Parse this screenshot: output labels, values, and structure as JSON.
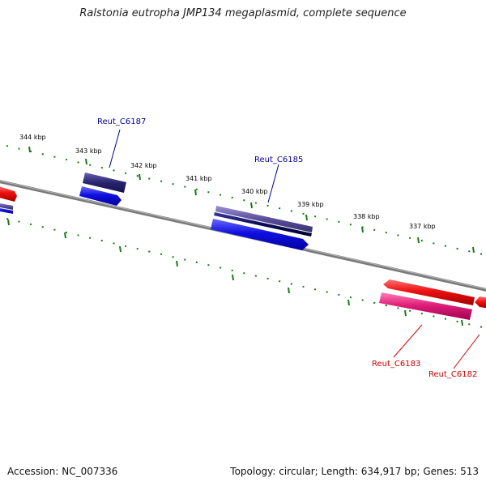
{
  "title": "Ralstonia eutropha JMP134 megaplasmid, complete sequence",
  "footer": {
    "accession": "Accession: NC_007336",
    "stats": "Topology: circular; Length: 634,917 bp; Genes: 513"
  },
  "colors": {
    "backbone": "#7a7a7a",
    "tick": "#1a7a1a",
    "forward_label": "#00008b",
    "reverse_label": "#cc0000",
    "gene_blue": "#1010e0",
    "gene_dark": "#2a2470",
    "gene_slate": "#5a4e9a",
    "gene_red": "#ee1010",
    "gene_pink": "#e0207a"
  },
  "ticks": [
    {
      "label": "344 kbp"
    },
    {
      "label": "343 kbp"
    },
    {
      "label": "342 kbp"
    },
    {
      "label": "341 kbp"
    },
    {
      "label": "340 kbp"
    },
    {
      "label": "339 kbp"
    },
    {
      "label": "338 kbp"
    },
    {
      "label": "337 kbp"
    }
  ],
  "gene_labels": [
    {
      "text": "Reut_C6187",
      "strand": "forward"
    },
    {
      "text": "Reut_C6185",
      "strand": "forward"
    },
    {
      "text": "Reut_C6183",
      "strand": "reverse"
    },
    {
      "text": "Reut_C6182",
      "strand": "reverse"
    }
  ]
}
